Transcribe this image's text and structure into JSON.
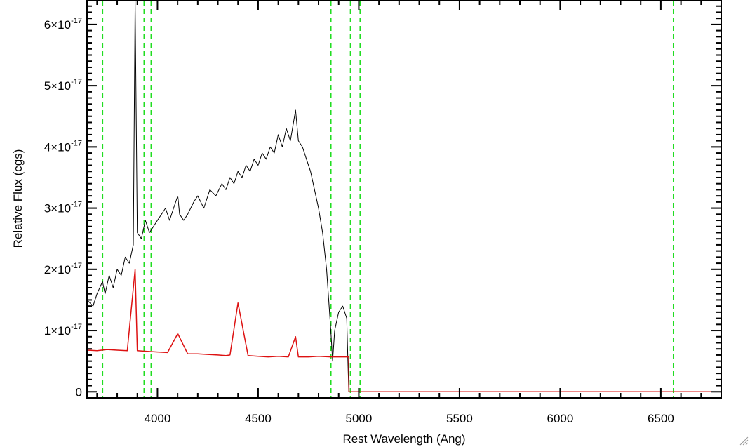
{
  "chart_data": {
    "type": "line",
    "xlabel": "Rest Wavelength (Ang)",
    "ylabel": "Relative Flux (cgs)",
    "xlim": [
      3650,
      6800
    ],
    "ylim": [
      -1e-18,
      6.4e-17
    ],
    "x_ticks": [
      {
        "value": 4000,
        "label": "4000"
      },
      {
        "value": 4500,
        "label": "4500"
      },
      {
        "value": 5000,
        "label": "5000"
      },
      {
        "value": 5500,
        "label": "5500"
      },
      {
        "value": 6000,
        "label": "6000"
      },
      {
        "value": 6500,
        "label": "6500"
      }
    ],
    "y_ticks": [
      {
        "value": 0,
        "mantissa": "0",
        "exponent": ""
      },
      {
        "value": 1e-17,
        "mantissa": "1×10",
        "exponent": "-17"
      },
      {
        "value": 2e-17,
        "mantissa": "2×10",
        "exponent": "-17"
      },
      {
        "value": 3e-17,
        "mantissa": "3×10",
        "exponent": "-17"
      },
      {
        "value": 4e-17,
        "mantissa": "4×10",
        "exponent": "-17"
      },
      {
        "value": 5e-17,
        "mantissa": "5×10",
        "exponent": "-17"
      },
      {
        "value": 6e-17,
        "mantissa": "6×10",
        "exponent": "-17"
      }
    ],
    "vertical_lines": [
      3727,
      3934,
      3969,
      4861,
      4959,
      5007,
      6563
    ],
    "series": [
      {
        "color": "#000000",
        "x": [
          3650,
          3680,
          3700,
          3727,
          3740,
          3760,
          3780,
          3800,
          3820,
          3840,
          3860,
          3880,
          3889,
          3900,
          3920,
          3940,
          3960,
          3980,
          4000,
          4020,
          4040,
          4060,
          4080,
          4101,
          4110,
          4130,
          4150,
          4180,
          4200,
          4230,
          4260,
          4290,
          4320,
          4340,
          4360,
          4380,
          4400,
          4420,
          4440,
          4460,
          4480,
          4500,
          4520,
          4540,
          4560,
          4580,
          4600,
          4620,
          4640,
          4660,
          4686,
          4700,
          4720,
          4740,
          4760,
          4780,
          4800,
          4820,
          4840,
          4861,
          4870,
          4880,
          4900,
          4920,
          4940,
          4950
        ],
        "y": [
          1.5e-17,
          1.4e-17,
          1.6e-17,
          1.8e-17,
          1.6e-17,
          1.9e-17,
          1.7e-17,
          2e-17,
          1.9e-17,
          2.2e-17,
          2.1e-17,
          2.4e-17,
          6.4e-17,
          2.6e-17,
          2.5e-17,
          2.8e-17,
          2.6e-17,
          2.7e-17,
          2.8e-17,
          2.9e-17,
          3e-17,
          2.8e-17,
          3e-17,
          3.2e-17,
          2.9e-17,
          2.8e-17,
          2.9e-17,
          3.1e-17,
          3.2e-17,
          3e-17,
          3.3e-17,
          3.2e-17,
          3.4e-17,
          3.3e-17,
          3.5e-17,
          3.4e-17,
          3.6e-17,
          3.5e-17,
          3.7e-17,
          3.6e-17,
          3.8e-17,
          3.7e-17,
          3.9e-17,
          3.8e-17,
          4e-17,
          3.9e-17,
          4.2e-17,
          4e-17,
          4.3e-17,
          4.1e-17,
          4.6e-17,
          4.1e-17,
          4e-17,
          3.8e-17,
          3.6e-17,
          3.3e-17,
          3e-17,
          2.6e-17,
          2e-17,
          1e-17,
          5e-18,
          1e-17,
          1.3e-17,
          1.4e-17,
          1.2e-17,
          0.0
        ]
      },
      {
        "color": "#dd1111",
        "x": [
          3650,
          3700,
          3750,
          3800,
          3850,
          3889,
          3900,
          3950,
          4000,
          4050,
          4101,
          4150,
          4200,
          4250,
          4300,
          4340,
          4360,
          4400,
          4450,
          4500,
          4550,
          4600,
          4650,
          4686,
          4700,
          4750,
          4800,
          4861,
          4900,
          4950,
          4951,
          5000,
          5500,
          6000,
          6500,
          6800
        ],
        "y": [
          6.8e-18,
          6.7e-18,
          6.9e-18,
          6.8e-18,
          6.7e-18,
          2e-17,
          6.7e-18,
          6.6e-18,
          6.5e-18,
          6.4e-18,
          9.5e-18,
          6.2e-18,
          6.2e-18,
          6.1e-18,
          6e-18,
          5.9e-18,
          6e-18,
          1.45e-17,
          5.9e-18,
          5.8e-18,
          5.7e-18,
          5.8e-18,
          5.7e-18,
          9e-18,
          5.7e-18,
          5.7e-18,
          5.8e-18,
          5.7e-18,
          5.7e-18,
          5.7e-18,
          0.0,
          0.0,
          0.0,
          0.0,
          0.0,
          0.0
        ]
      }
    ]
  }
}
